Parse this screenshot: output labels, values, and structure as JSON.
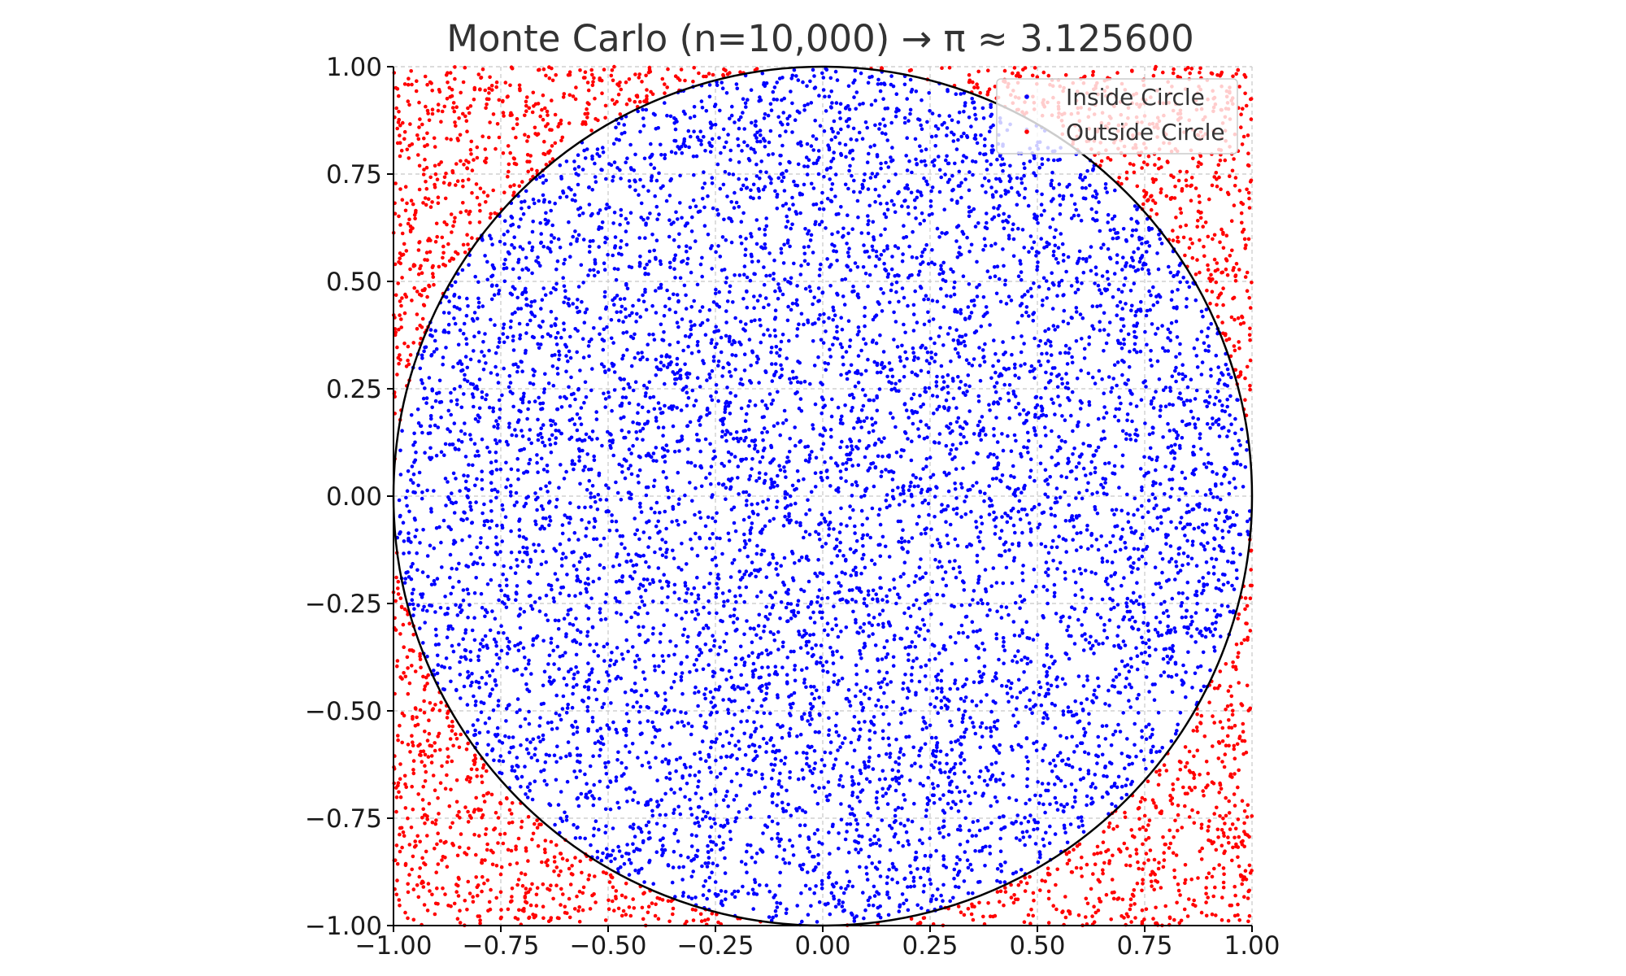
{
  "chart_data": {
    "type": "scatter",
    "title": "Monte Carlo (n=10,000) → π ≈ 3.125600",
    "xlabel": "",
    "ylabel": "",
    "xlim": [
      -1.0,
      1.0
    ],
    "ylim": [
      -1.0,
      1.0
    ],
    "x_ticks": [
      "−1.00",
      "−0.75",
      "−0.50",
      "−0.25",
      "0.00",
      "0.25",
      "0.50",
      "0.75",
      "1.00"
    ],
    "y_ticks": [
      "−1.00",
      "−0.75",
      "−0.50",
      "−0.25",
      "0.00",
      "0.25",
      "0.50",
      "0.75",
      "1.00"
    ],
    "n_points": 10000,
    "pi_estimate": 3.1256,
    "grid": true,
    "legend_position": "top-right",
    "circle": {
      "center": [
        0,
        0
      ],
      "radius": 1.0,
      "color": "#000000"
    },
    "series": [
      {
        "name": "Inside Circle",
        "color": "#0000ff",
        "count": 7814
      },
      {
        "name": "Outside Circle",
        "color": "#ff0000",
        "count": 2186
      }
    ]
  }
}
